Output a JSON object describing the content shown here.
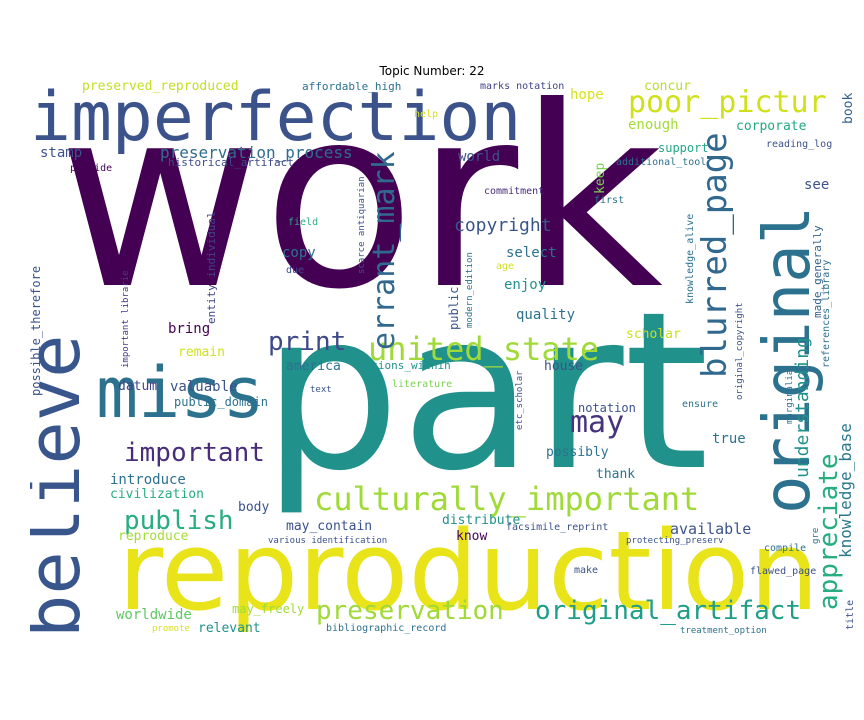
{
  "title": "Topic Number: 22",
  "colors": {
    "dark_purple": "#440154",
    "indigo": "#3b528b",
    "blue": "#2c728e",
    "teal": "#21918c",
    "green": "#27ad81",
    "light_green": "#5ec962",
    "yellow_green": "#addc30",
    "yellow": "#fde725"
  },
  "words": {
    "work": "work",
    "part": "part",
    "reproduction": "reproduction",
    "imperfection": "imperfection",
    "believe": "believe",
    "miss": "miss",
    "original": "original",
    "culturally_important": "culturally_important",
    "united_state": "united_state",
    "poor_pictur": "poor_pictur",
    "blurred_page": "blurred_page",
    "errant_mark": "errant_mark",
    "preservation": "preservation",
    "original_artifact": "original_artifact",
    "appreciate": "appreciate",
    "understanding": "understanding",
    "may": "may",
    "publish": "publish",
    "important": "important",
    "print": "print",
    "preservation_process": "preservation_process",
    "copyright": "copyright",
    "knowledge_base": "knowledge_base",
    "preserved_reproduced": "preserved_reproduced",
    "affordable_high": "affordable_high",
    "marks_notation": "marks notation",
    "concur": "concur",
    "hope": "hope",
    "enough": "enough",
    "corporate": "corporate",
    "book": "book",
    "help": "help",
    "stamp": "stamp",
    "world": "world",
    "historical_artifact": "historical_artifact",
    "provide": "provide",
    "additional_tool": "additional_tool",
    "reading_log": "reading_log",
    "support": "support",
    "keep": "keep",
    "see": "see",
    "first": "first",
    "commitment": "commitment",
    "field": "field",
    "scarce_antiquarian": "scarce antiquarian",
    "entity_individual": "entity individual",
    "copy": "copy",
    "select": "select",
    "enjoy": "enjoy",
    "age": "age",
    "due": "due",
    "important_librarie": "important librarie",
    "possible_therefore": "possible_therefore",
    "made_generally": "made_generally",
    "references_library": "references_library",
    "knowledge_alive": "knowledge_alive",
    "public": "public",
    "modern_edition": "modern_edition",
    "quality": "quality",
    "scholar": "scholar",
    "bring": "bring",
    "original_copyright": "original_copyright",
    "marginalia": "marginalia",
    "remain": "remain",
    "america": "america",
    "nations_within": "nations_within",
    "house": "house",
    "datum": "datum",
    "valuable": "valuable",
    "public_domain": "public_domain",
    "text": "text",
    "literature": "literature",
    "etc_scholar": "etc_scholar",
    "notation": "notation",
    "ensure": "ensure",
    "true": "true",
    "possibly": "possibly",
    "thank": "thank",
    "introduce": "introduce",
    "civilization": "civilization",
    "body": "body",
    "may_contain": "may_contain",
    "distribute": "distribute",
    "available": "available",
    "reproduce": "reproduce",
    "various_identification": "various identification",
    "know": "know",
    "facsimile_reprint": "facsimile_reprint",
    "protecting_preserv": "protecting_preserv",
    "compile": "compile",
    "gre": "gre",
    "make": "make",
    "flawed_page": "flawed_page",
    "worldwide": "worldwide",
    "may_freely": "may_freely",
    "relevant": "relevant",
    "promote": "promote",
    "bibliographic_record": "bibliographic_record",
    "treatment_option": "treatment_option",
    "title": "title"
  }
}
